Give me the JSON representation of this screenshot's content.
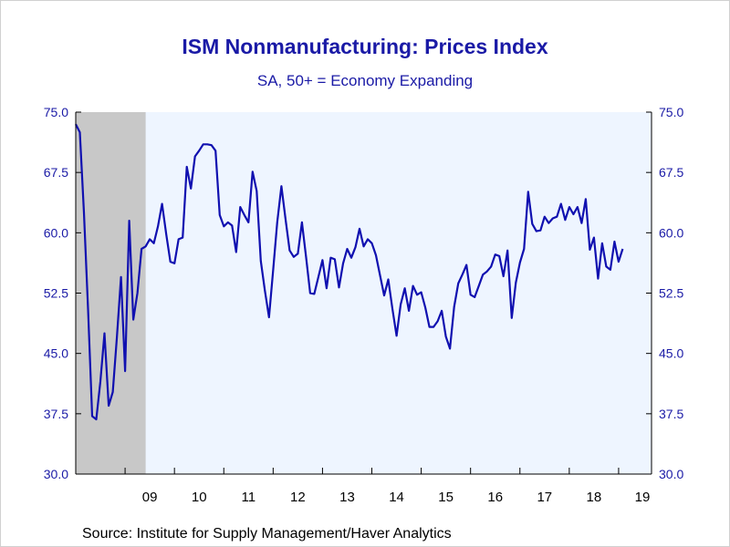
{
  "chart_data": {
    "type": "line",
    "title": "ISM Nonmanufacturing: Prices Index",
    "subtitle": "SA, 50+ = Economy Expanding",
    "source": "Source:  Institute for Supply Management/Haver Analytics",
    "xlabel": "",
    "ylabel": "",
    "ylim": [
      30.0,
      75.0
    ],
    "y_ticks": [
      "75.0",
      "67.5",
      "60.0",
      "52.5",
      "45.0",
      "37.5",
      "30.0"
    ],
    "x_tick_labels": [
      "09",
      "10",
      "11",
      "12",
      "13",
      "14",
      "15",
      "16",
      "17",
      "18",
      "19"
    ],
    "recession_shading": {
      "start": "2008-01",
      "end": "2009-06"
    },
    "colors": {
      "line": "#1010b0",
      "plot_bg": "#eef5ff",
      "recession": "#c8c8c8",
      "text": "#1a1aa6"
    },
    "grid": false,
    "legend": "none",
    "series": [
      {
        "x_start": "2008-01",
        "frequency": "monthly",
        "values": [
          73.5,
          72.5,
          62.5,
          50.5,
          37.2,
          36.8,
          41.5,
          47.5,
          38.5,
          40.2,
          47.0,
          54.5,
          42.8,
          61.5,
          49.2,
          52.5,
          58.0,
          58.3,
          59.2,
          58.7,
          60.8,
          63.6,
          59.8,
          56.4,
          56.2,
          59.2,
          59.4,
          68.2,
          65.5,
          69.5,
          70.2,
          71.0,
          71.0,
          70.9,
          70.2,
          62.2,
          60.8,
          61.3,
          60.9,
          57.6,
          63.2,
          62.2,
          61.3,
          67.6,
          65.2,
          56.5,
          52.8,
          49.5,
          55.3,
          61.3,
          65.8,
          61.7,
          57.8,
          57.0,
          57.4,
          61.3,
          57.0,
          52.5,
          52.4,
          54.5,
          56.6,
          53.1,
          56.9,
          56.7,
          53.2,
          56.2,
          58.0,
          56.9,
          58.2,
          60.5,
          58.3,
          59.2,
          58.7,
          57.2,
          54.7,
          52.2,
          54.2,
          50.5,
          47.2,
          51.1,
          53.1,
          50.3,
          53.4,
          52.3,
          52.6,
          50.7,
          48.3,
          48.3,
          49.0,
          50.3,
          47.1,
          45.6,
          50.8,
          53.7,
          54.8,
          56.0,
          52.3,
          52.0,
          53.4,
          54.8,
          55.2,
          55.8,
          57.3,
          57.1,
          54.6,
          57.8,
          49.4,
          53.8,
          56.3,
          58.0,
          65.1,
          61.1,
          60.2,
          60.3,
          62.0,
          61.2,
          61.8,
          62.0,
          63.6,
          61.6,
          63.2,
          62.3,
          63.2,
          61.2,
          64.2,
          57.9,
          59.4,
          54.3,
          58.7,
          55.8,
          55.4,
          58.9,
          56.4,
          58.0
        ]
      }
    ]
  }
}
